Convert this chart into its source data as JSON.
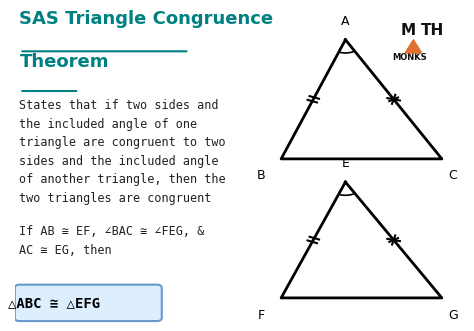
{
  "title": "SAS Triangle Congruence\nTheorem",
  "title_color": "#008080",
  "title_underline": true,
  "body_text_1": "States that if two sides and\nthe included angle of one\ntriangle are congruent to two\nsides and the included angle\nof another triangle, then the\ntwo triangles are congruent",
  "body_text_2": "If AB ≅ EF, ∠BAC ≅ ∠FEG, &\nAC ≅ EG, then",
  "formula_text": "△ABC ≅ △EFG",
  "formula_bg": "#ddeeff",
  "formula_border": "#6699cc",
  "bg_color": "#ffffff",
  "triangle1": {
    "A": [
      0.72,
      0.88
    ],
    "B": [
      0.58,
      0.52
    ],
    "C": [
      0.93,
      0.52
    ],
    "labels": {
      "A": [
        0.72,
        0.91
      ],
      "B": [
        0.555,
        0.5
      ],
      "C": [
        0.935,
        0.5
      ]
    }
  },
  "triangle2": {
    "E": [
      0.72,
      0.45
    ],
    "F": [
      0.58,
      0.1
    ],
    "G": [
      0.93,
      0.1
    ],
    "labels": {
      "E": [
        0.72,
        0.48
      ],
      "F": [
        0.555,
        0.08
      ],
      "G": [
        0.935,
        0.08
      ]
    }
  },
  "line_color": "#000000",
  "label_fontsize": 9,
  "mathmonks_orange": "#e07030"
}
